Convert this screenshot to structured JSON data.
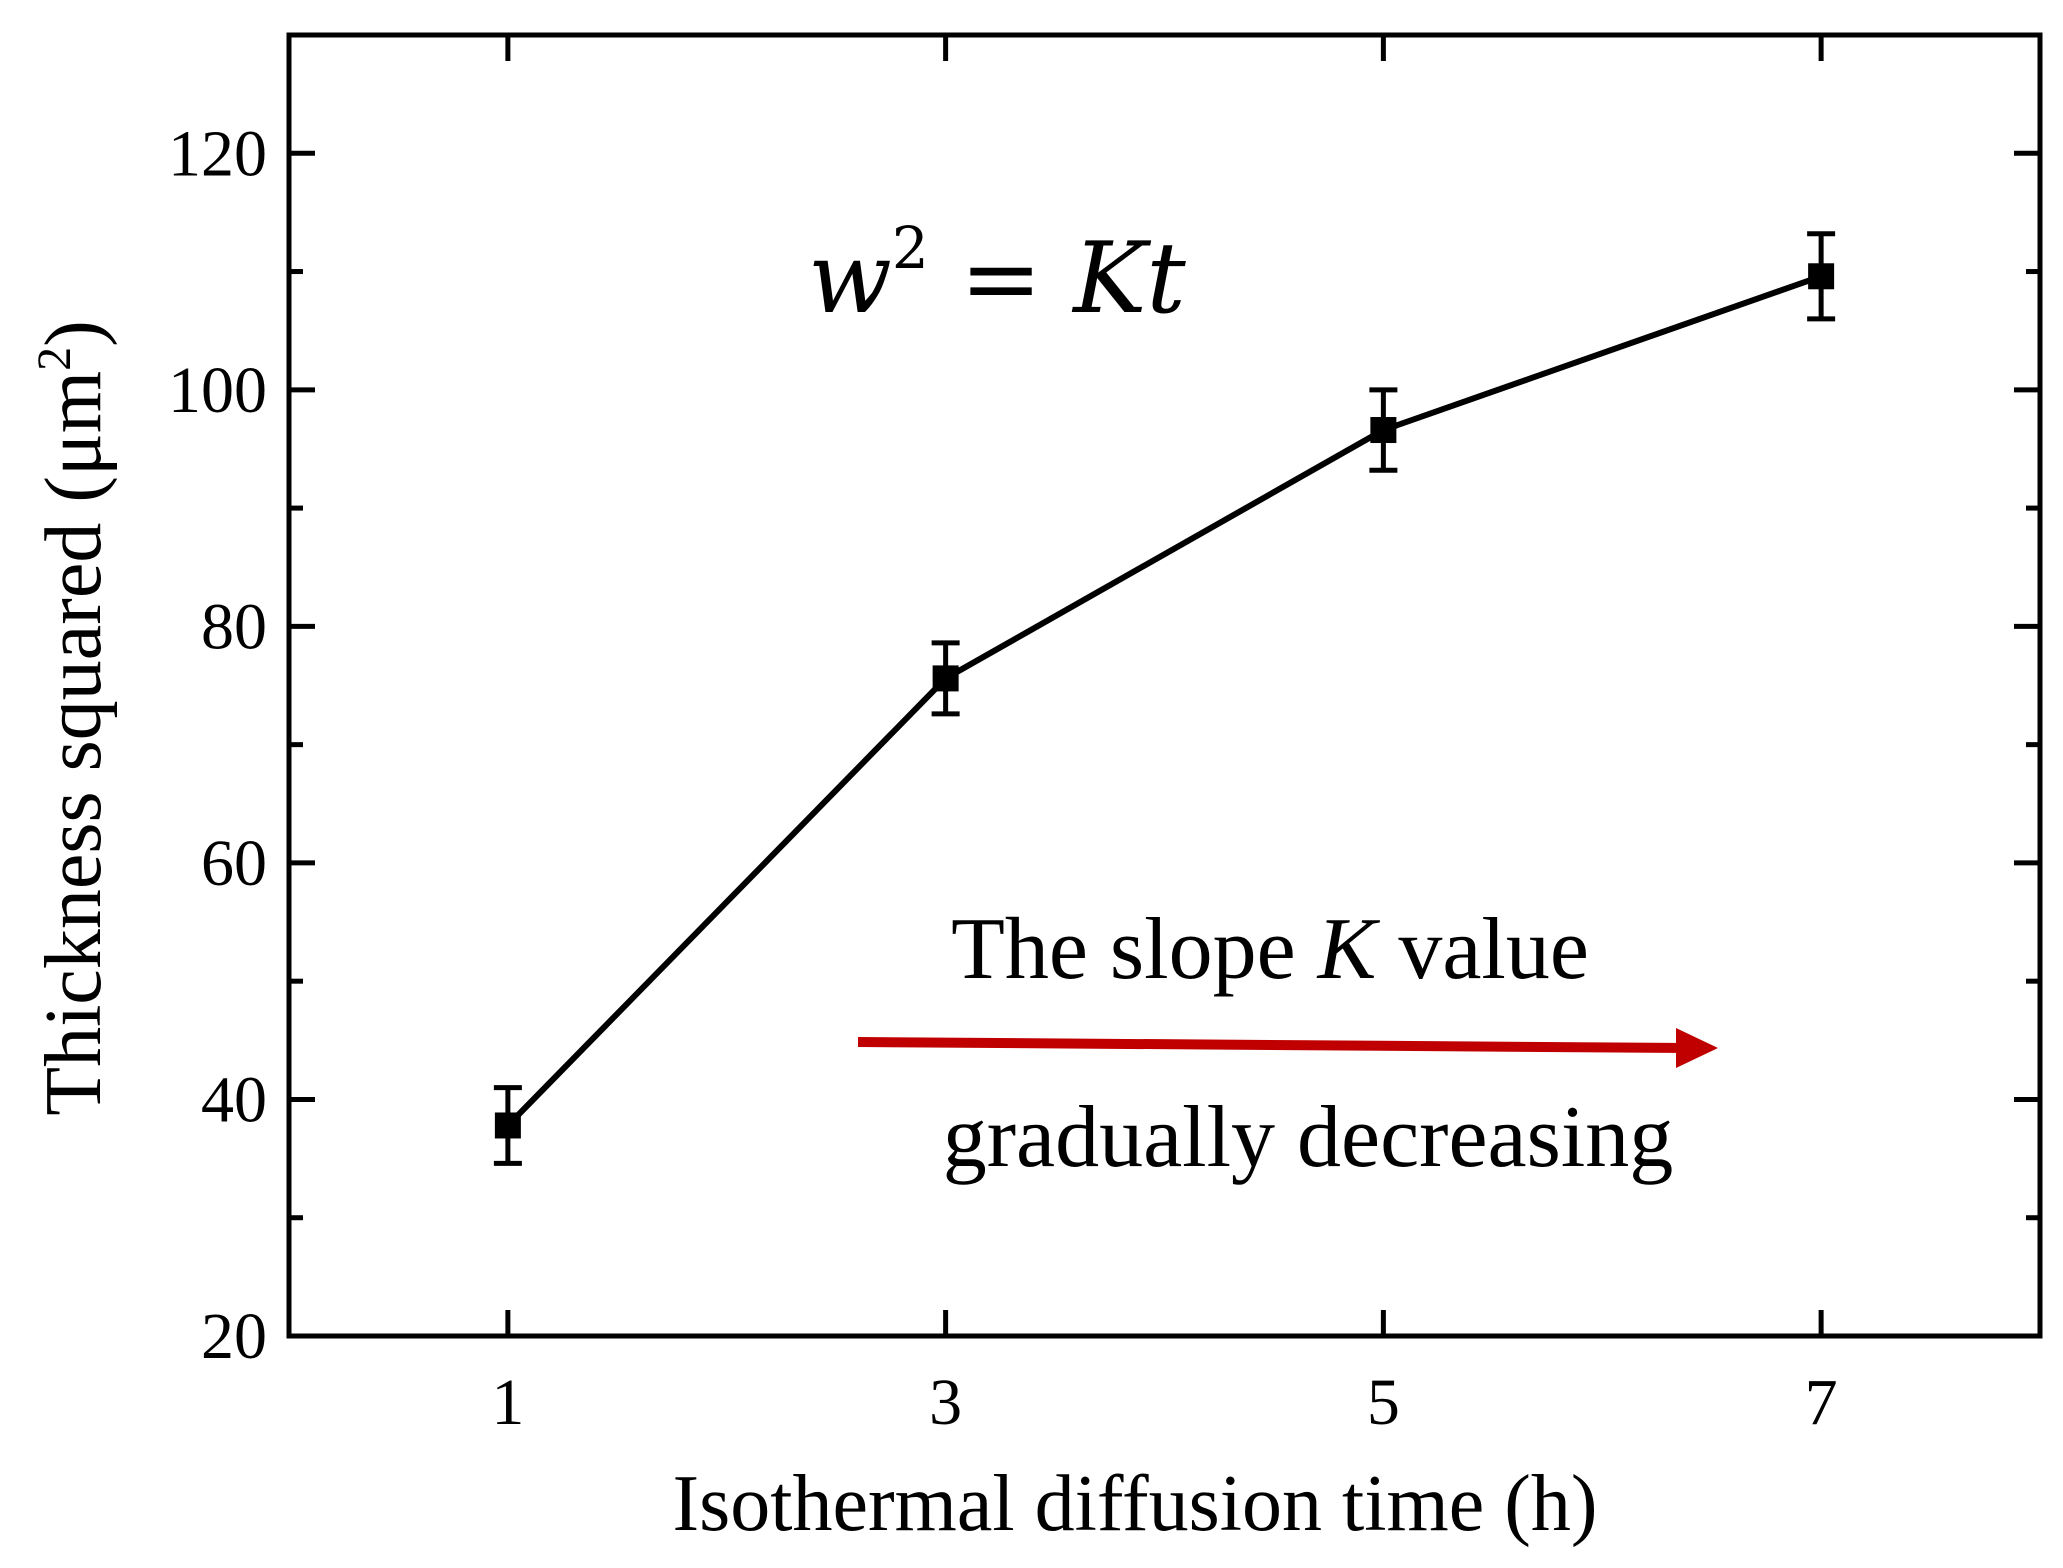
{
  "chart_data": {
    "type": "line",
    "title": "",
    "xlabel": "Isothermal diffusion time (h)",
    "ylabel": "Thickness squared (μm",
    "ylabel_sup": "2",
    "ylabel_end": ")",
    "xlim": [
      0,
      8
    ],
    "ylim": [
      20,
      130
    ],
    "x_ticks": [
      1,
      3,
      5,
      7
    ],
    "x_tick_labels": [
      "1",
      "3",
      "5",
      "7"
    ],
    "y_ticks": [
      20,
      40,
      60,
      80,
      100,
      120
    ],
    "y_tick_labels": [
      "20",
      "40",
      "60",
      "80",
      "100",
      "120"
    ],
    "grid": false,
    "series": [
      {
        "x": [
          1,
          3,
          5,
          7
        ],
        "y": [
          37.8,
          75.6,
          96.6,
          109.6
        ],
        "error": [
          3.2,
          3.0,
          3.4,
          3.6
        ],
        "color": "#000000",
        "marker": "square"
      }
    ],
    "annotations": {
      "formula": {
        "w": "w",
        "sup": "2",
        "rest": " = Kt"
      },
      "slope_text": {
        "part1": "The slope ",
        "k": "K",
        "part2": " value"
      },
      "trend_text": "gradually decreasing",
      "arrow_color": "#c00000"
    }
  }
}
